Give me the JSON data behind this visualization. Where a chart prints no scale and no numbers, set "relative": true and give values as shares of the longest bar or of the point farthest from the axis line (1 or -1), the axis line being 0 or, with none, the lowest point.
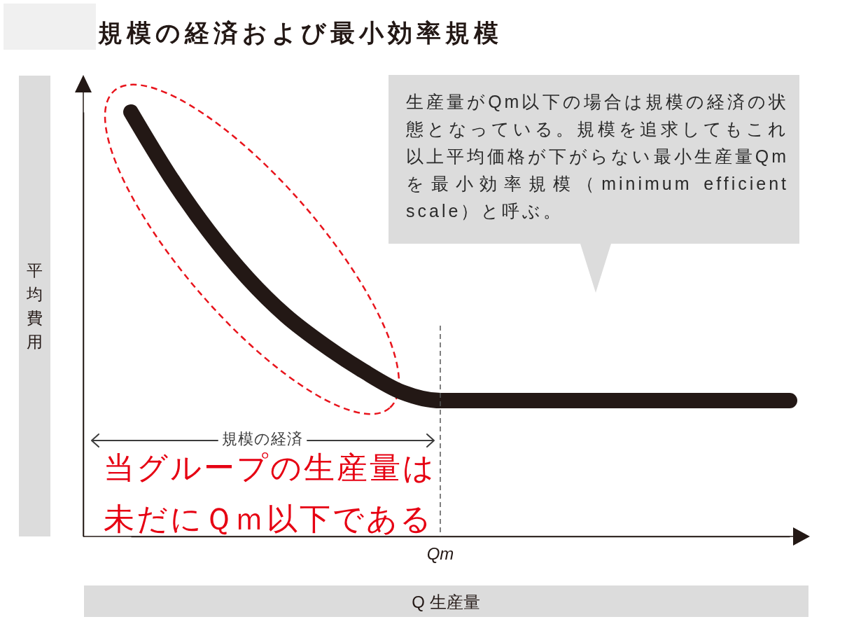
{
  "chart_data": {
    "type": "line",
    "title": "規模の経済および最小効率規模",
    "xlabel": "Q 生産量",
    "ylabel": "平均費用",
    "relative": true,
    "categories": [
      null,
      null,
      null,
      null,
      null,
      null,
      null,
      null,
      null,
      null,
      null,
      null,
      null,
      null,
      null,
      null,
      null,
      null
    ],
    "series": [
      {
        "color": "#231815",
        "values": [
          1,
          0.85,
          0.72,
          0.61,
          0.52,
          0.45,
          0.39,
          0.34,
          0.32,
          0.32,
          0.32,
          0.32,
          0.32,
          0.32,
          0.32,
          0.32,
          0.32,
          0.32
        ]
      }
    ],
    "annotations": [
      "生産量がQm以下の場合は規模の経済の状態となっている。規模を追求してもこれ以上平均価格が下がらない最小生産量Qmを最小効率規模（minimum efficient scale）と呼ぶ。",
      "規模の経済",
      "当グループの生産量は未だにＱｍ以下である",
      "Qm"
    ]
  }
}
